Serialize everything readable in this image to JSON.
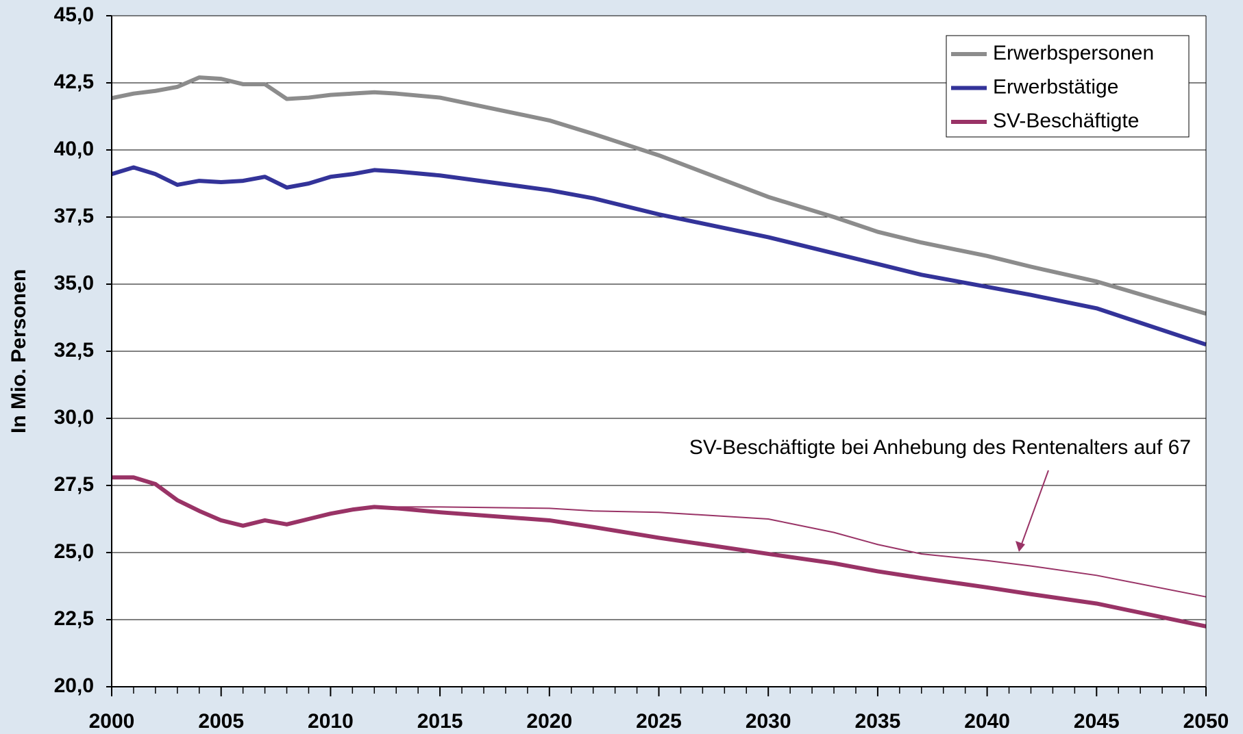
{
  "chart_data": {
    "type": "line",
    "y_label": "In Mio. Personen",
    "x": [
      2000,
      2001,
      2002,
      2003,
      2004,
      2005,
      2006,
      2007,
      2008,
      2009,
      2010,
      2011,
      2012,
      2013,
      2015,
      2020,
      2022,
      2025,
      2030,
      2033,
      2035,
      2037,
      2040,
      2042,
      2045,
      2050
    ],
    "series": [
      {
        "name": "Erwerbspersonen",
        "color": "#8c8c8c",
        "width": "thick",
        "legend": true,
        "values": [
          41.93,
          42.1,
          42.2,
          42.35,
          42.7,
          42.65,
          42.45,
          42.45,
          41.9,
          41.95,
          42.05,
          42.1,
          42.15,
          42.1,
          41.95,
          41.1,
          40.6,
          39.8,
          38.25,
          37.5,
          36.95,
          36.55,
          36.05,
          35.65,
          35.1,
          33.9
        ]
      },
      {
        "name": "Erwerbstätige",
        "color": "#333399",
        "width": "thick",
        "legend": true,
        "values": [
          39.1,
          39.35,
          39.1,
          38.7,
          38.85,
          38.8,
          38.85,
          39.0,
          38.6,
          38.75,
          39.0,
          39.1,
          39.25,
          39.2,
          39.05,
          38.5,
          38.2,
          37.6,
          36.75,
          36.15,
          35.75,
          35.35,
          34.9,
          34.6,
          34.1,
          32.75
        ]
      },
      {
        "name": "SV-Beschäftigte",
        "color": "#993366",
        "width": "thick",
        "legend": true,
        "values": [
          27.8,
          27.8,
          27.55,
          26.95,
          26.55,
          26.2,
          26.0,
          26.2,
          26.05,
          26.25,
          26.45,
          26.6,
          26.7,
          26.65,
          26.5,
          26.2,
          25.95,
          25.55,
          24.95,
          24.6,
          24.3,
          24.05,
          23.7,
          23.45,
          23.1,
          22.25
        ]
      },
      {
        "name": "SV-Beschäftigte bei Anhebung des Rentenalters auf 67",
        "color": "#993366",
        "width": "thin",
        "legend": false,
        "values": [
          null,
          null,
          null,
          null,
          null,
          null,
          null,
          null,
          null,
          null,
          null,
          null,
          26.7,
          26.7,
          26.7,
          26.65,
          26.55,
          26.5,
          26.25,
          25.75,
          25.3,
          24.95,
          24.7,
          24.5,
          24.15,
          23.35
        ]
      }
    ],
    "xlim": [
      2000,
      2050
    ],
    "xticks": [
      2000,
      2005,
      2010,
      2015,
      2020,
      2025,
      2030,
      2035,
      2040,
      2045,
      2050
    ],
    "ylim": [
      20,
      45
    ],
    "yticks": [
      {
        "value": 20,
        "label": "20,0"
      },
      {
        "value": 22.5,
        "label": "22,5"
      },
      {
        "value": 25,
        "label": "25,0"
      },
      {
        "value": 27.5,
        "label": "27,5"
      },
      {
        "value": 30,
        "label": "30,0"
      },
      {
        "value": 32.5,
        "label": "32,5"
      },
      {
        "value": 35,
        "label": "35,0"
      },
      {
        "value": 37.5,
        "label": "37,5"
      },
      {
        "value": 40,
        "label": "40,0"
      },
      {
        "value": 42.5,
        "label": "42,5"
      },
      {
        "value": 45,
        "label": "45,0"
      }
    ],
    "grid": true,
    "legend_position": "upper right"
  }
}
